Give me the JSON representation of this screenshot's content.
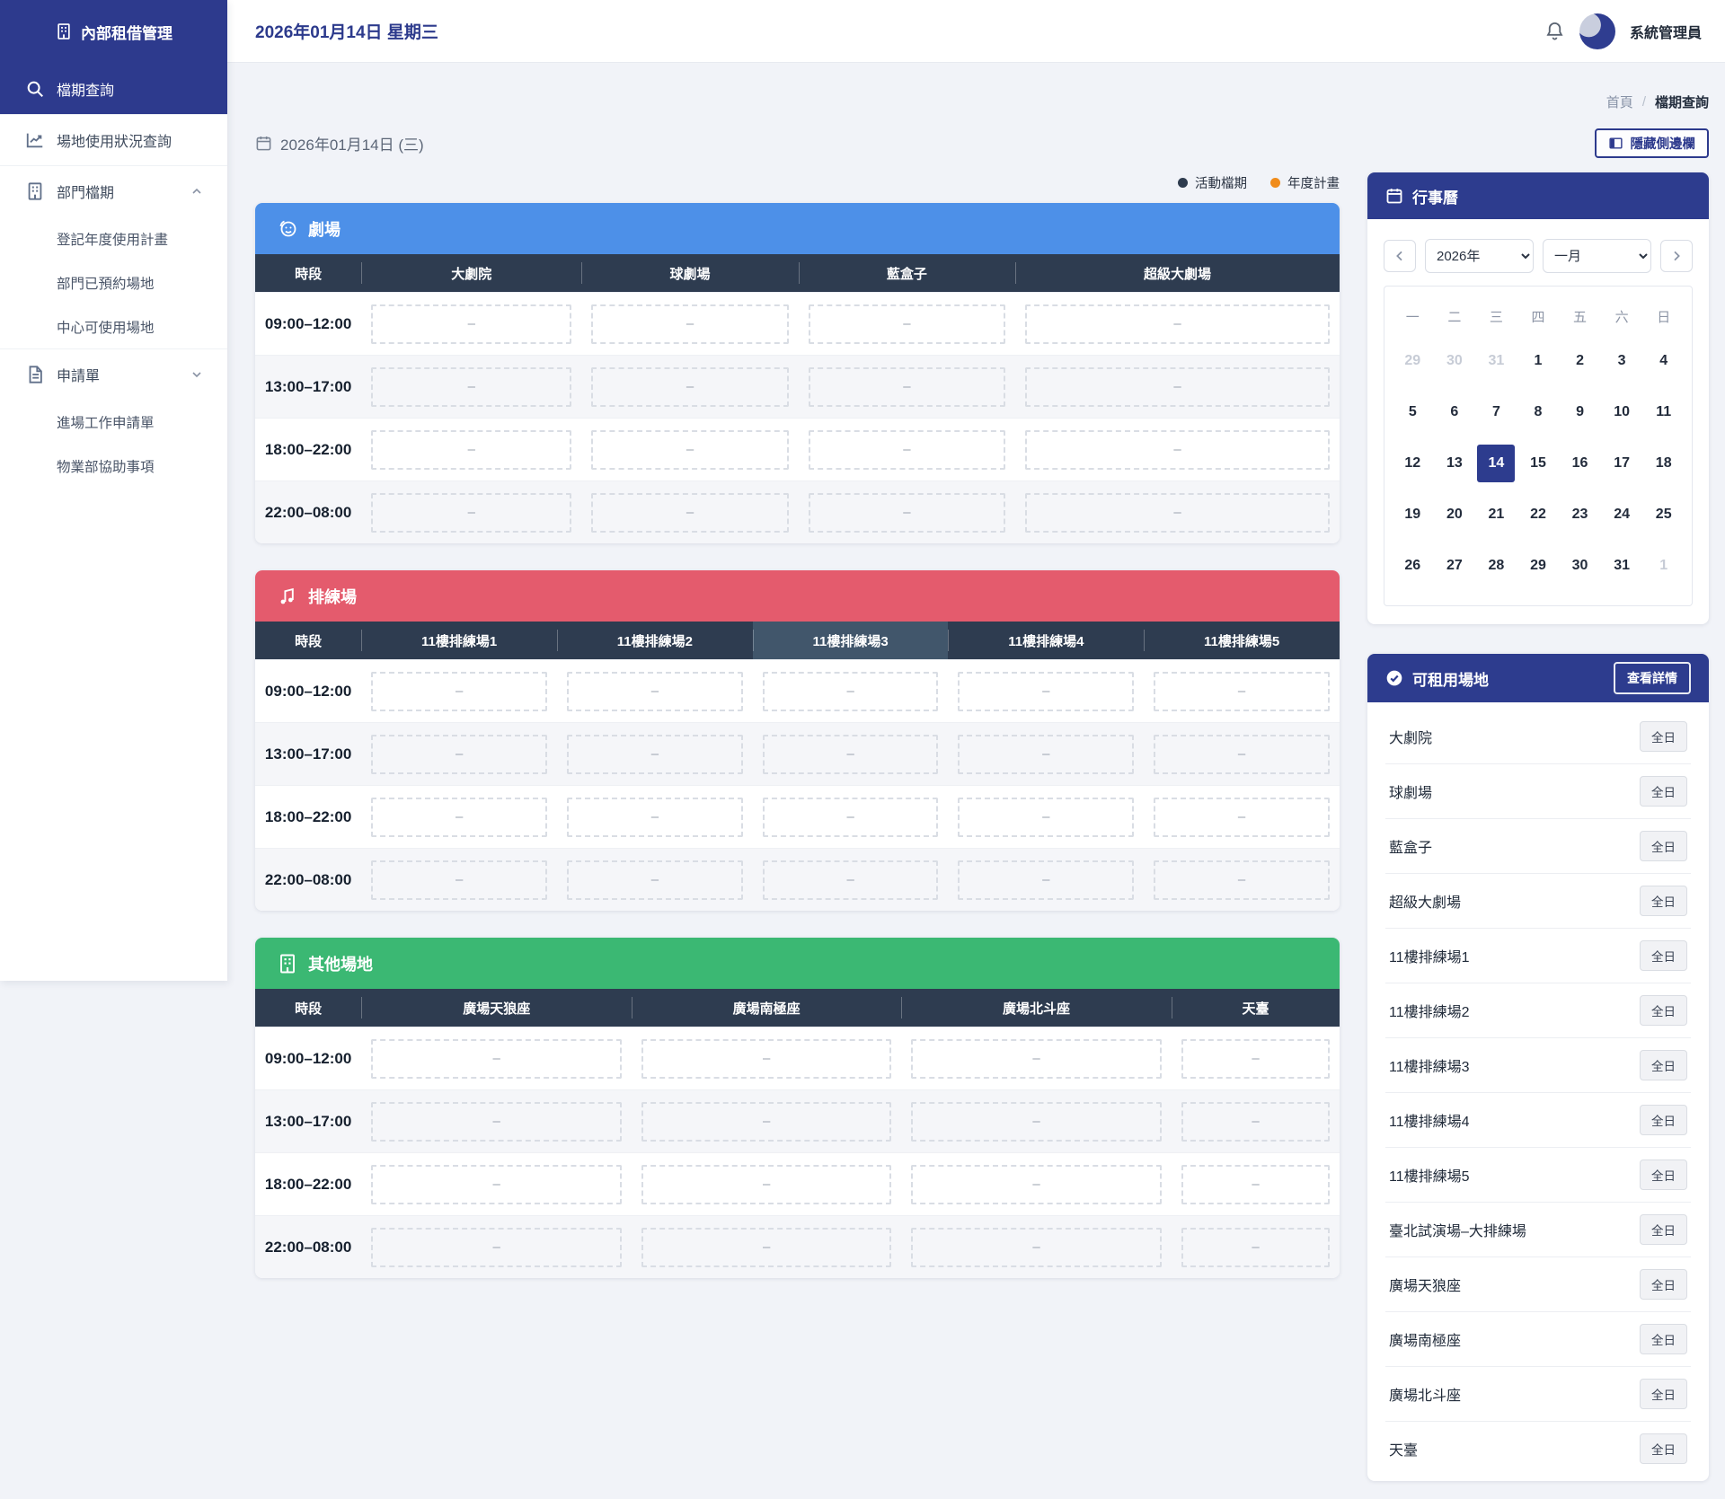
{
  "app": {
    "title": "內部租借管理"
  },
  "topbar": {
    "date_title": "2026年01月14日 星期三",
    "user_name": "系統管理員"
  },
  "sidebar": {
    "items": [
      {
        "label": "檔期查詢"
      },
      {
        "label": "場地使用狀況查詢"
      },
      {
        "label": "部門檔期",
        "children": [
          {
            "label": "登記年度使用計畫"
          },
          {
            "label": "部門已預約場地"
          },
          {
            "label": "中心可使用場地"
          }
        ]
      },
      {
        "label": "申請單",
        "children": [
          {
            "label": "進場工作申請單"
          },
          {
            "label": "物業部協助事項"
          }
        ]
      }
    ]
  },
  "breadcrumb": {
    "home": "首頁",
    "separator": "/",
    "current": "檔期查詢"
  },
  "toolbar": {
    "date_label": "2026年01月14日 (三)",
    "hide_sidebar": "隱藏側邊欄"
  },
  "legend": {
    "items": [
      {
        "label": "活動檔期",
        "color": "#2e3b4e"
      },
      {
        "label": "年度計畫",
        "color": "#f08c1b"
      }
    ]
  },
  "tables": [
    {
      "title": "劇場",
      "icon": "masks-icon",
      "header_color": "#4d90e8",
      "time_header": "時段",
      "time_col_width_pct": 9.8,
      "columns": [
        "大劇院",
        "球劇場",
        "藍盒子",
        "超級大劇場"
      ],
      "column_widths_pct": [
        20.3,
        20.0,
        20.0,
        29.9
      ],
      "highlight_column_index": null,
      "rows": [
        {
          "time": "09:00–12:00",
          "cells": [
            "–",
            "–",
            "–",
            "–"
          ]
        },
        {
          "time": "13:00–17:00",
          "cells": [
            "–",
            "–",
            "–",
            "–"
          ]
        },
        {
          "time": "18:00–22:00",
          "cells": [
            "–",
            "–",
            "–",
            "–"
          ]
        },
        {
          "time": "22:00–08:00",
          "cells": [
            "–",
            "–",
            "–",
            "–"
          ]
        }
      ]
    },
    {
      "title": "排練場",
      "icon": "music-icon",
      "header_color": "#e45b6d",
      "time_header": "時段",
      "time_col_width_pct": 9.8,
      "columns": [
        "11樓排練場1",
        "11樓排練場2",
        "11樓排練場3",
        "11樓排練場4",
        "11樓排練場5"
      ],
      "column_widths_pct": [
        18.04,
        18.04,
        18.04,
        18.04,
        18.04
      ],
      "highlight_column_index": 2,
      "rows": [
        {
          "time": "09:00–12:00",
          "cells": [
            "–",
            "–",
            "–",
            "–",
            "–"
          ]
        },
        {
          "time": "13:00–17:00",
          "cells": [
            "–",
            "–",
            "–",
            "–",
            "–"
          ]
        },
        {
          "time": "18:00–22:00",
          "cells": [
            "–",
            "–",
            "–",
            "–",
            "–"
          ]
        },
        {
          "time": "22:00–08:00",
          "cells": [
            "–",
            "–",
            "–",
            "–",
            "–"
          ]
        }
      ]
    },
    {
      "title": "其他場地",
      "icon": "building-icon",
      "header_color": "#3bb873",
      "time_header": "時段",
      "time_col_width_pct": 9.8,
      "columns": [
        "廣場天狼座",
        "廣場南極座",
        "廣場北斗座",
        "天臺"
      ],
      "column_widths_pct": [
        24.95,
        24.85,
        24.95,
        15.5
      ],
      "highlight_column_index": null,
      "rows": [
        {
          "time": "09:00–12:00",
          "cells": [
            "–",
            "–",
            "–",
            "–"
          ]
        },
        {
          "time": "13:00–17:00",
          "cells": [
            "–",
            "–",
            "–",
            "–"
          ]
        },
        {
          "time": "18:00–22:00",
          "cells": [
            "–",
            "–",
            "–",
            "–"
          ]
        },
        {
          "time": "22:00–08:00",
          "cells": [
            "–",
            "–",
            "–",
            "–"
          ]
        }
      ]
    }
  ],
  "calendar": {
    "title": "行事曆",
    "year": "2026年",
    "month": "一月",
    "weekdays": [
      "一",
      "二",
      "三",
      "四",
      "五",
      "六",
      "日"
    ],
    "days": [
      {
        "d": 29,
        "muted": true
      },
      {
        "d": 30,
        "muted": true
      },
      {
        "d": 31,
        "muted": true
      },
      {
        "d": 1
      },
      {
        "d": 2
      },
      {
        "d": 3
      },
      {
        "d": 4
      },
      {
        "d": 5
      },
      {
        "d": 6
      },
      {
        "d": 7
      },
      {
        "d": 8
      },
      {
        "d": 9
      },
      {
        "d": 10
      },
      {
        "d": 11
      },
      {
        "d": 12
      },
      {
        "d": 13
      },
      {
        "d": 14,
        "selected": true
      },
      {
        "d": 15
      },
      {
        "d": 16
      },
      {
        "d": 17
      },
      {
        "d": 18
      },
      {
        "d": 19
      },
      {
        "d": 20
      },
      {
        "d": 21
      },
      {
        "d": 22
      },
      {
        "d": 23
      },
      {
        "d": 24
      },
      {
        "d": 25
      },
      {
        "d": 26
      },
      {
        "d": 27
      },
      {
        "d": 28
      },
      {
        "d": 29
      },
      {
        "d": 30
      },
      {
        "d": 31
      },
      {
        "d": 1,
        "muted": true
      }
    ]
  },
  "venues_panel": {
    "title": "可租用場地",
    "details_button": "查看詳情",
    "badge": "全日",
    "items": [
      "大劇院",
      "球劇場",
      "藍盒子",
      "超級大劇場",
      "11樓排練場1",
      "11樓排練場2",
      "11樓排練場3",
      "11樓排練場4",
      "11樓排練場5",
      "臺北試演場–大排練場",
      "廣場天狼座",
      "廣場南極座",
      "廣場北斗座",
      "天臺"
    ]
  },
  "colors": {
    "primary": "#2d3a8d",
    "table_theater": "#4d90e8",
    "table_rehearsal": "#e45b6d",
    "table_other": "#3bb873",
    "thead_dark": "#2e3c50"
  }
}
